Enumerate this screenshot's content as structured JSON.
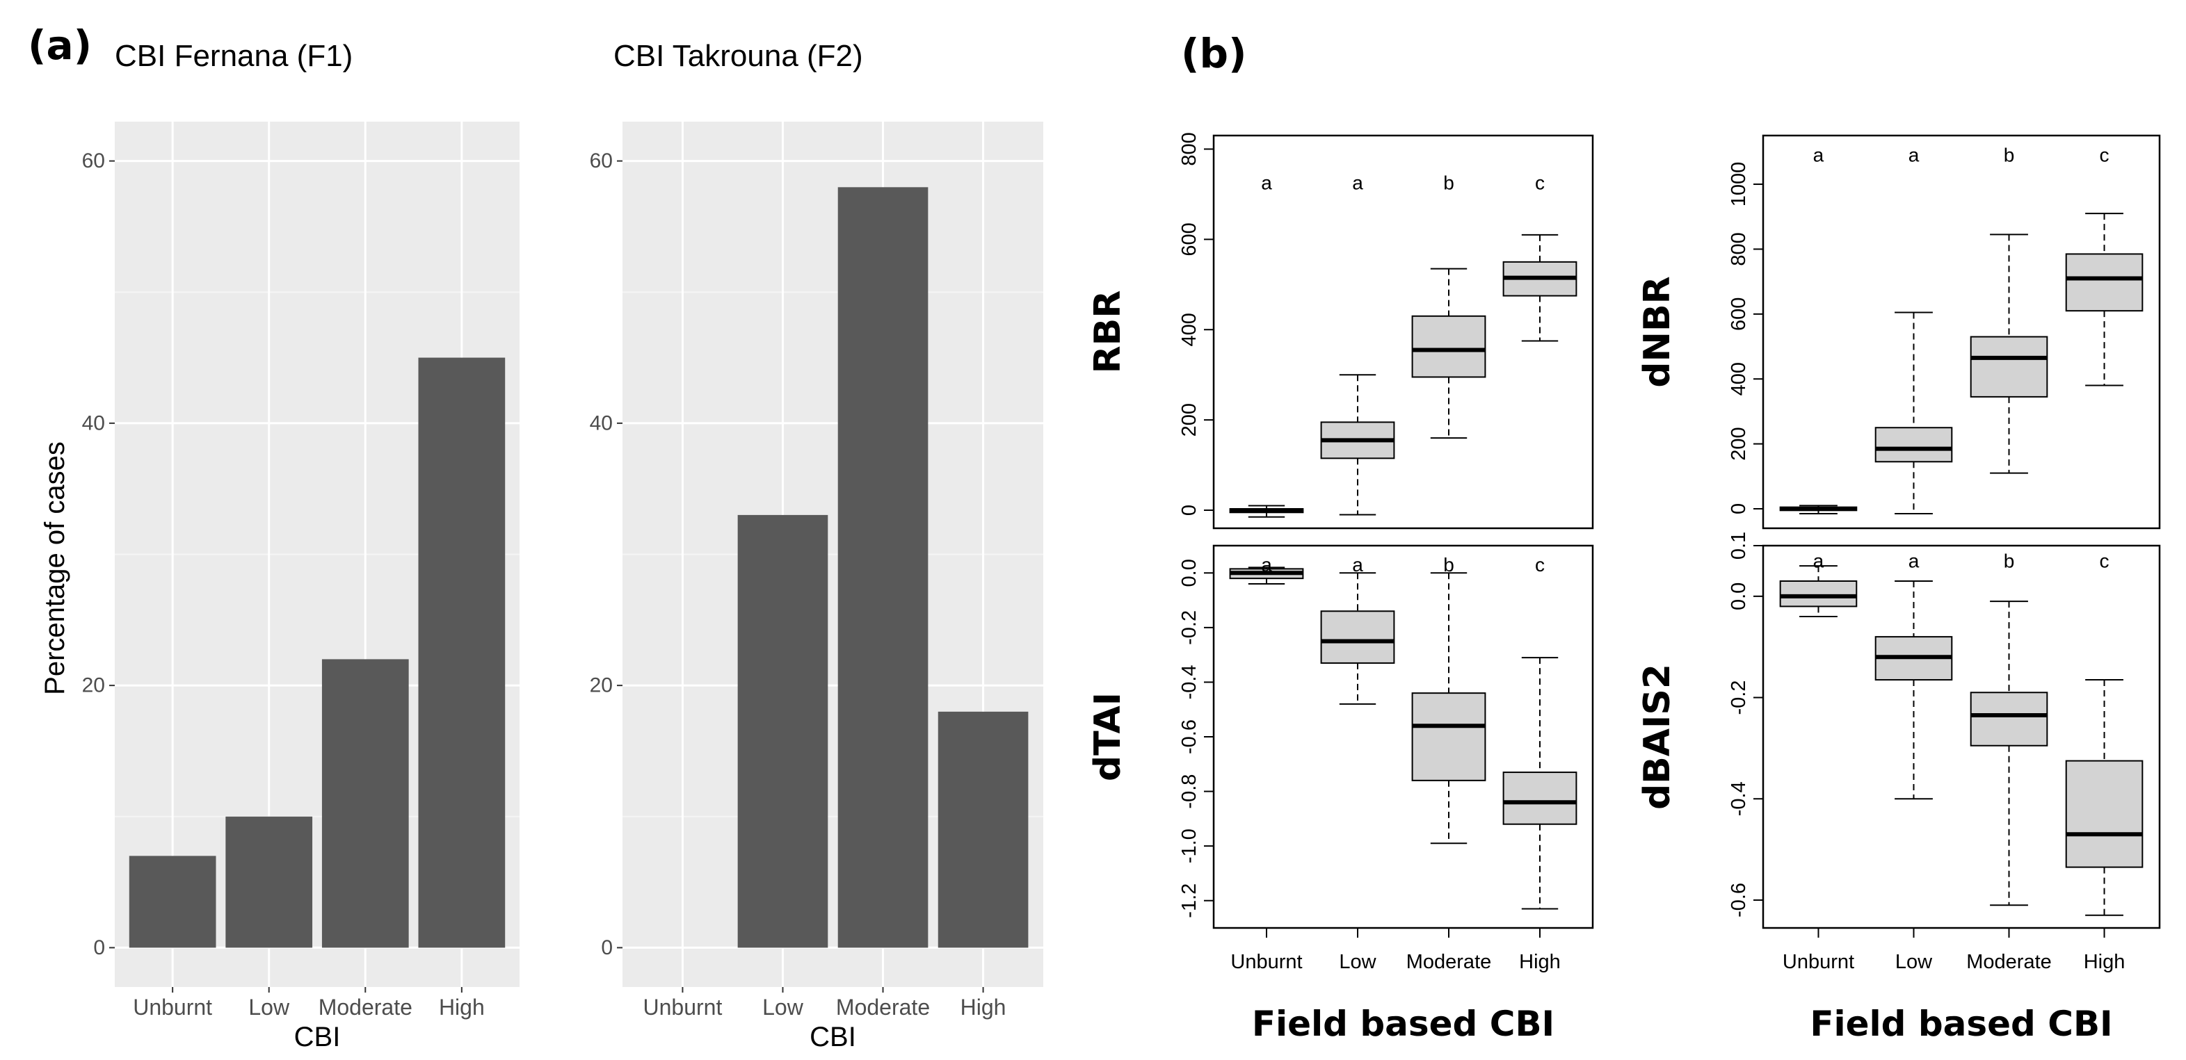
{
  "panel_a_label": "(a)",
  "panel_b_label": "(b)",
  "colors": {
    "bar": "#595959",
    "panel_bg": "#ebebeb",
    "grid_major": "#ffffff",
    "box_fill": "#d3d3d3",
    "axis_text": "#4d4d4d",
    "text": "#000000"
  },
  "chart_data": [
    {
      "type": "bar",
      "title": "CBI Fernana (F1)",
      "xlabel": "CBI",
      "ylabel": "Percentage of cases",
      "categories": [
        "Unburnt",
        "Low",
        "Moderate",
        "High"
      ],
      "values": [
        7,
        10,
        22,
        45
      ],
      "ylim": [
        -3,
        63
      ],
      "yticks": [
        0,
        20,
        40,
        60
      ],
      "grid": true
    },
    {
      "type": "bar",
      "title": "CBI Takrouna (F2)",
      "xlabel": "CBI",
      "ylabel": "",
      "categories": [
        "Unburnt",
        "Low",
        "Moderate",
        "High"
      ],
      "values": [
        0,
        33,
        58,
        18
      ],
      "ylim": [
        -3,
        63
      ],
      "yticks": [
        0,
        20,
        40,
        60
      ],
      "grid": true
    },
    {
      "type": "boxplot",
      "ylabel": "RBR",
      "categories": [
        "Unburnt",
        "Low",
        "Moderate",
        "High"
      ],
      "ylim": [
        -40,
        830
      ],
      "yticks": [
        0,
        200,
        400,
        600,
        800
      ],
      "letters": [
        "a",
        "a",
        "b",
        "c"
      ],
      "letter_value": 725,
      "boxes": [
        {
          "min": -15,
          "q1": -5,
          "median": 0,
          "q3": 3,
          "max": 10
        },
        {
          "min": -10,
          "q1": 115,
          "median": 155,
          "q3": 195,
          "max": 300
        },
        {
          "min": 160,
          "q1": 295,
          "median": 355,
          "q3": 430,
          "max": 535
        },
        {
          "min": 375,
          "q1": 475,
          "median": 515,
          "q3": 550,
          "max": 610
        }
      ],
      "show_xticks": false
    },
    {
      "type": "boxplot",
      "ylabel": "dNBR",
      "categories": [
        "Unburnt",
        "Low",
        "Moderate",
        "High"
      ],
      "ylim": [
        -60,
        1150
      ],
      "yticks": [
        0,
        200,
        400,
        600,
        800,
        1000
      ],
      "letters": [
        "a",
        "a",
        "b",
        "c"
      ],
      "letter_value": 1090,
      "boxes": [
        {
          "min": -15,
          "q1": -5,
          "median": 0,
          "q3": 5,
          "max": 10
        },
        {
          "min": -15,
          "q1": 145,
          "median": 185,
          "q3": 250,
          "max": 605
        },
        {
          "min": 110,
          "q1": 345,
          "median": 465,
          "q3": 530,
          "max": 845
        },
        {
          "min": 380,
          "q1": 610,
          "median": 710,
          "q3": 785,
          "max": 910
        }
      ],
      "show_xticks": false
    },
    {
      "type": "boxplot",
      "ylabel": "dTAI",
      "categories": [
        "Unburnt",
        "Low",
        "Moderate",
        "High"
      ],
      "ylim": [
        -1.3,
        0.1
      ],
      "yticks": [
        -1.2,
        -1.0,
        -0.8,
        -0.6,
        -0.4,
        -0.2,
        0.0
      ],
      "ytick_labels": [
        "-1.2",
        "-1.0",
        "-0.8",
        "-0.6",
        "-0.4",
        "-0.2",
        "0.0"
      ],
      "letters": [
        "a",
        "a",
        "b",
        "c"
      ],
      "letter_value": 0.03,
      "boxes": [
        {
          "min": -0.04,
          "q1": -0.02,
          "median": 0.0,
          "q3": 0.015,
          "max": 0.02
        },
        {
          "min": -0.48,
          "q1": -0.33,
          "median": -0.25,
          "q3": -0.14,
          "max": 0.0
        },
        {
          "min": -0.99,
          "q1": -0.76,
          "median": -0.56,
          "q3": -0.44,
          "max": 0.0
        },
        {
          "min": -1.23,
          "q1": -0.92,
          "median": -0.84,
          "q3": -0.73,
          "max": -0.31
        }
      ],
      "show_xticks": true,
      "xlabel": "Field based CBI"
    },
    {
      "type": "boxplot",
      "ylabel": "dBAIS2",
      "categories": [
        "Unburnt",
        "Low",
        "Moderate",
        "High"
      ],
      "ylim": [
        -0.655,
        0.1
      ],
      "yticks": [
        -0.6,
        -0.4,
        -0.2,
        0.0,
        0.1
      ],
      "ytick_labels": [
        "-0.6",
        "-0.4",
        "-0.2",
        "0.0",
        "0.1"
      ],
      "letters": [
        "a",
        "a",
        "b",
        "c"
      ],
      "letter_value": 0.07,
      "boxes": [
        {
          "min": -0.04,
          "q1": -0.02,
          "median": 0.0,
          "q3": 0.03,
          "max": 0.06
        },
        {
          "min": -0.4,
          "q1": -0.165,
          "median": -0.12,
          "q3": -0.08,
          "max": 0.03
        },
        {
          "min": -0.61,
          "q1": -0.295,
          "median": -0.235,
          "q3": -0.19,
          "max": -0.01
        },
        {
          "min": -0.63,
          "q1": -0.535,
          "median": -0.47,
          "q3": -0.325,
          "max": -0.165
        }
      ],
      "show_xticks": true,
      "xlabel": "Field based CBI"
    }
  ]
}
